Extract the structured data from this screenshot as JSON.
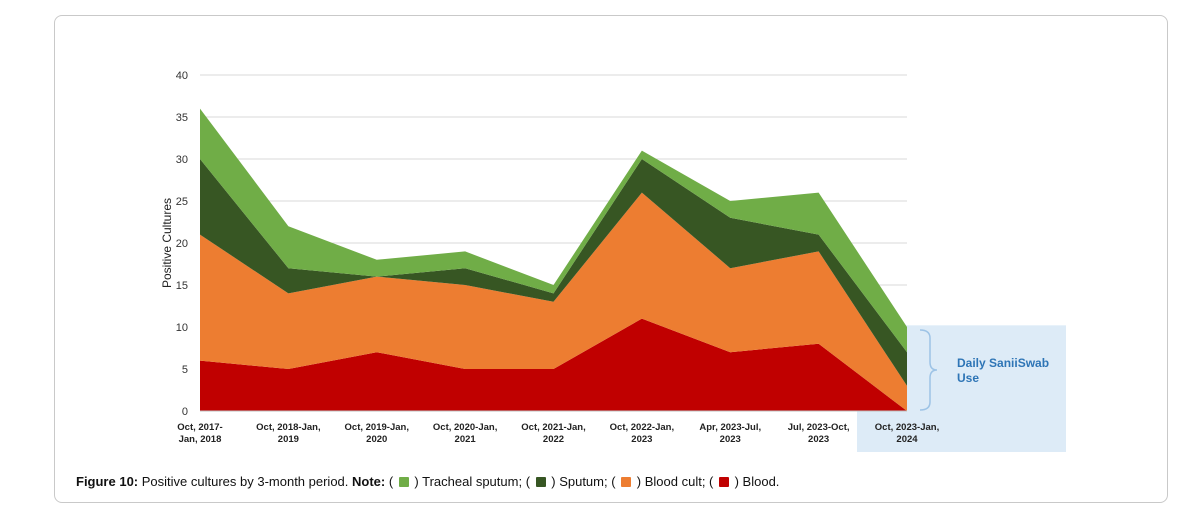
{
  "chart_data": {
    "type": "area",
    "stacked": true,
    "ylabel": "Positive Cultures",
    "ylim": [
      0,
      40
    ],
    "yticks": [
      0,
      5,
      10,
      15,
      20,
      25,
      30,
      35,
      40
    ],
    "grid": true,
    "categories": [
      [
        "Oct, 2017-",
        "Jan, 2018"
      ],
      [
        "Oct, 2018-Jan,",
        "2019"
      ],
      [
        "Oct, 2019-Jan,",
        "2020"
      ],
      [
        "Oct, 2020-Jan,",
        "2021"
      ],
      [
        "Oct, 2021-Jan,",
        "2022"
      ],
      [
        "Oct, 2022-Jan,",
        "2023"
      ],
      [
        "Apr, 2023-Jul,",
        "2023"
      ],
      [
        "Jul, 2023-Oct,",
        "2023"
      ],
      [
        "Oct, 2023-Jan,",
        "2024"
      ]
    ],
    "series": [
      {
        "key": "blood",
        "values": [
          6,
          5,
          7,
          5,
          5,
          11,
          7,
          8,
          0
        ],
        "color": "#c00000"
      },
      {
        "key": "blood_cult",
        "values": [
          15,
          9,
          9,
          10,
          8,
          15,
          10,
          11,
          3
        ],
        "color": "#ed7d31"
      },
      {
        "key": "sputum",
        "values": [
          9,
          3,
          0,
          2,
          1,
          4,
          6,
          2,
          4
        ],
        "color": "#375623"
      },
      {
        "key": "tracheal_sputum",
        "values": [
          6,
          5,
          2,
          2,
          1,
          1,
          2,
          5,
          3
        ],
        "color": "#70ad47"
      }
    ],
    "annotation": {
      "text": [
        "Daily SaniiSwab",
        "Use"
      ],
      "covers_category": 8,
      "fill": "#ddebf7",
      "text_color": "#2e75b6"
    }
  },
  "caption": {
    "label": "Figure 10:",
    "text": " Positive cultures by 3-month period. ",
    "note_label": "Note:",
    "items": [
      {
        "open": " ( ",
        "close": " ) Tracheal sputum;",
        "color": "#70ad47"
      },
      {
        "open": " ( ",
        "close": " ) Sputum;",
        "color": "#375623"
      },
      {
        "open": " ( ",
        "close": " ) Blood cult;",
        "color": "#ed7d31"
      },
      {
        "open": " ( ",
        "close": " ) Blood.",
        "color": "#c00000"
      }
    ]
  }
}
